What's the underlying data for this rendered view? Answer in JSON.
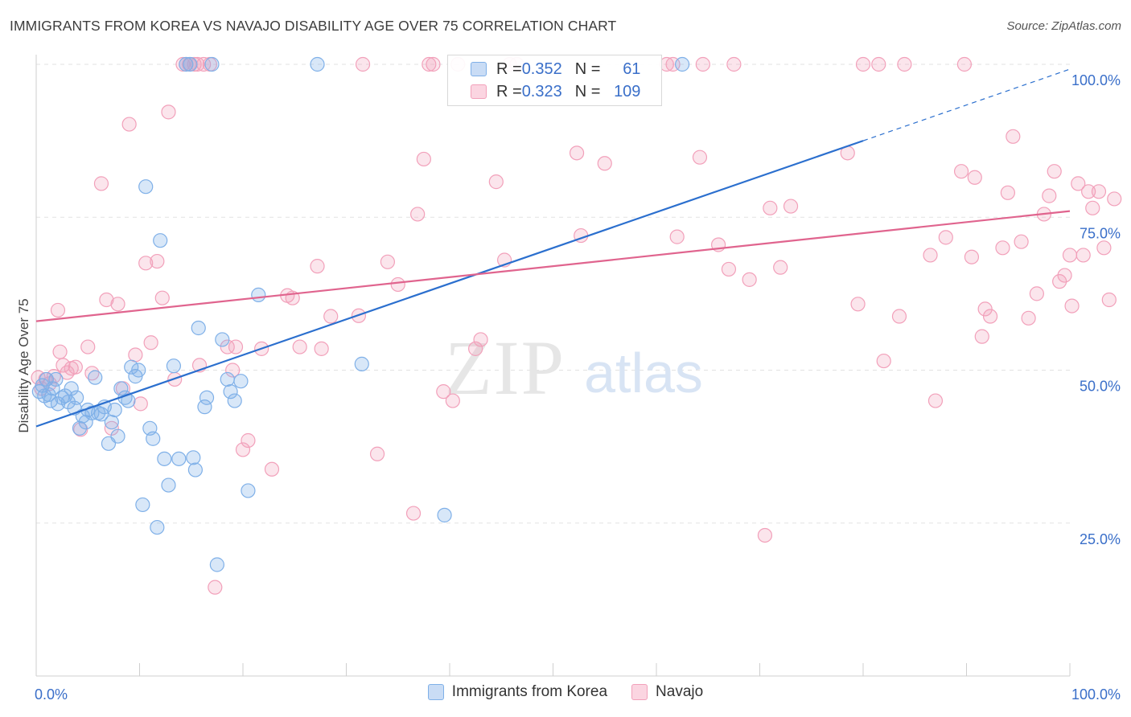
{
  "title": "IMMIGRANTS FROM KOREA VS NAVAJO DISABILITY AGE OVER 75 CORRELATION CHART",
  "source": "Source: ZipAtlas.com",
  "watermark": {
    "zip": "ZIP",
    "atlas": "atlas"
  },
  "legend_top": [
    {
      "r_label": "R = ",
      "r_value": "0.352",
      "n_label": "N = ",
      "n_value": "61"
    },
    {
      "r_label": "R = ",
      "r_value": "0.323",
      "n_label": "N = ",
      "n_value": "109"
    }
  ],
  "bottom_legend": [
    "Immigrants from Korea",
    "Navajo"
  ],
  "chart_data": {
    "type": "scatter",
    "xlabel": "",
    "ylabel": "Disability Age Over 75",
    "xlim": [
      0,
      100
    ],
    "ylim": [
      0,
      100
    ],
    "x_tick_labels": [
      "0.0%",
      "100.0%"
    ],
    "y_tick_labels": [
      {
        "value": 25,
        "label": "25.0%"
      },
      {
        "value": 50,
        "label": "50.0%"
      },
      {
        "value": 75,
        "label": "75.0%"
      },
      {
        "value": 100,
        "label": "100.0%"
      }
    ],
    "grid": true,
    "legend_position": "top-center",
    "colors": {
      "korea": "#7fb0e8",
      "korea_line": "#2b6fce",
      "navajo": "#f2a0ba",
      "navajo_line": "#e0648e",
      "tick_label": "#3a6fc9"
    },
    "series": [
      {
        "name": "Immigrants from Korea",
        "trend": {
          "x0": 0,
          "y0": 40.8,
          "x1": 80,
          "y1": 87.5,
          "dashed_to_x": 100,
          "dashed_to_y": 99.2
        },
        "points": [
          [
            0.3,
            46.5
          ],
          [
            0.6,
            47.5
          ],
          [
            0.8,
            45.8
          ],
          [
            1.0,
            48.5
          ],
          [
            1.2,
            46.0
          ],
          [
            1.4,
            45.0
          ],
          [
            1.6,
            47.0
          ],
          [
            1.9,
            48.5
          ],
          [
            2.1,
            44.5
          ],
          [
            2.5,
            45.5
          ],
          [
            2.8,
            45.8
          ],
          [
            3.1,
            44.8
          ],
          [
            3.4,
            47.0
          ],
          [
            3.7,
            43.8
          ],
          [
            3.9,
            45.5
          ],
          [
            4.2,
            40.5
          ],
          [
            4.5,
            42.5
          ],
          [
            4.8,
            41.5
          ],
          [
            5.0,
            43.5
          ],
          [
            5.4,
            43.0
          ],
          [
            5.7,
            48.8
          ],
          [
            6.0,
            43.0
          ],
          [
            6.3,
            42.8
          ],
          [
            6.6,
            44.0
          ],
          [
            7.0,
            38.0
          ],
          [
            7.3,
            41.5
          ],
          [
            7.6,
            43.5
          ],
          [
            7.9,
            39.2
          ],
          [
            8.2,
            47.0
          ],
          [
            8.6,
            45.5
          ],
          [
            8.9,
            45.0
          ],
          [
            9.2,
            50.5
          ],
          [
            9.6,
            49.0
          ],
          [
            9.9,
            50.0
          ],
          [
            10.3,
            28.0
          ],
          [
            10.6,
            80.0
          ],
          [
            11.0,
            40.5
          ],
          [
            11.3,
            38.8
          ],
          [
            11.7,
            24.3
          ],
          [
            12.0,
            71.2
          ],
          [
            12.4,
            35.5
          ],
          [
            12.8,
            31.2
          ],
          [
            13.3,
            50.7
          ],
          [
            13.8,
            35.5
          ],
          [
            14.5,
            100
          ],
          [
            14.9,
            100
          ],
          [
            15.2,
            35.7
          ],
          [
            15.4,
            33.7
          ],
          [
            15.7,
            56.9
          ],
          [
            16.3,
            44.0
          ],
          [
            16.5,
            45.5
          ],
          [
            17.0,
            100
          ],
          [
            17.5,
            18.2
          ],
          [
            18.0,
            55.0
          ],
          [
            18.5,
            48.5
          ],
          [
            18.8,
            46.5
          ],
          [
            19.2,
            45.0
          ],
          [
            19.8,
            48.2
          ],
          [
            20.5,
            30.3
          ],
          [
            21.5,
            62.3
          ],
          [
            27.2,
            100
          ],
          [
            31.5,
            51.0
          ],
          [
            39.5,
            26.3
          ],
          [
            62.5,
            100
          ]
        ]
      },
      {
        "name": "Navajo",
        "trend": {
          "x0": 0,
          "y0": 58.0,
          "x1": 100,
          "y1": 76.0
        },
        "points": [
          [
            0.2,
            48.8
          ],
          [
            0.5,
            47.0
          ],
          [
            0.9,
            48.5
          ],
          [
            1.3,
            47.8
          ],
          [
            1.7,
            49.0
          ],
          [
            2.1,
            59.8
          ],
          [
            2.3,
            53.0
          ],
          [
            2.6,
            50.8
          ],
          [
            3.0,
            49.6
          ],
          [
            3.4,
            50.3
          ],
          [
            3.8,
            50.5
          ],
          [
            4.3,
            40.3
          ],
          [
            5.0,
            53.8
          ],
          [
            5.4,
            49.5
          ],
          [
            6.3,
            80.5
          ],
          [
            6.8,
            61.5
          ],
          [
            7.3,
            40.5
          ],
          [
            7.9,
            60.8
          ],
          [
            8.4,
            47.0
          ],
          [
            9.0,
            90.2
          ],
          [
            9.6,
            52.5
          ],
          [
            10.1,
            44.5
          ],
          [
            10.6,
            67.5
          ],
          [
            11.1,
            54.5
          ],
          [
            11.7,
            67.8
          ],
          [
            12.2,
            61.8
          ],
          [
            12.8,
            92.2
          ],
          [
            13.4,
            48.5
          ],
          [
            14.2,
            100
          ],
          [
            14.5,
            100
          ],
          [
            14.8,
            100
          ],
          [
            15.3,
            100
          ],
          [
            15.6,
            100
          ],
          [
            15.8,
            50.8
          ],
          [
            16.2,
            100
          ],
          [
            16.8,
            100
          ],
          [
            17.3,
            14.5
          ],
          [
            18.5,
            53.8
          ],
          [
            19.0,
            50.0
          ],
          [
            19.3,
            53.8
          ],
          [
            20.0,
            37.0
          ],
          [
            20.5,
            38.5
          ],
          [
            21.8,
            53.5
          ],
          [
            22.8,
            33.8
          ],
          [
            24.3,
            62.2
          ],
          [
            24.8,
            61.8
          ],
          [
            25.5,
            53.8
          ],
          [
            27.2,
            67.0
          ],
          [
            27.6,
            53.5
          ],
          [
            28.5,
            58.8
          ],
          [
            31.2,
            58.9
          ],
          [
            31.6,
            100
          ],
          [
            33.0,
            36.3
          ],
          [
            34.0,
            67.7
          ],
          [
            35.0,
            64.0
          ],
          [
            36.5,
            26.6
          ],
          [
            36.9,
            75.5
          ],
          [
            37.5,
            84.5
          ],
          [
            38.0,
            100
          ],
          [
            38.4,
            100
          ],
          [
            39.4,
            46.5
          ],
          [
            40.3,
            45.0
          ],
          [
            40.8,
            100
          ],
          [
            42.5,
            53.5
          ],
          [
            43.0,
            55.0
          ],
          [
            44.5,
            80.8
          ],
          [
            45.3,
            68.0
          ],
          [
            45.8,
            100
          ],
          [
            46.5,
            100
          ],
          [
            52.3,
            85.5
          ],
          [
            52.7,
            72.0
          ],
          [
            55.0,
            83.8
          ],
          [
            61.0,
            100
          ],
          [
            61.6,
            100
          ],
          [
            62.0,
            71.8
          ],
          [
            64.2,
            84.8
          ],
          [
            64.5,
            100
          ],
          [
            66.0,
            70.5
          ],
          [
            67.0,
            66.5
          ],
          [
            67.5,
            100
          ],
          [
            69.0,
            64.8
          ],
          [
            70.5,
            23.0
          ],
          [
            71.0,
            76.5
          ],
          [
            72.0,
            66.8
          ],
          [
            73.0,
            76.8
          ],
          [
            78.5,
            85.5
          ],
          [
            79.5,
            60.8
          ],
          [
            80.0,
            100
          ],
          [
            81.5,
            100
          ],
          [
            82.0,
            51.5
          ],
          [
            83.5,
            58.8
          ],
          [
            84.0,
            100
          ],
          [
            86.5,
            68.8
          ],
          [
            87.0,
            45.0
          ],
          [
            88.0,
            71.7
          ],
          [
            89.5,
            82.5
          ],
          [
            89.8,
            100
          ],
          [
            90.5,
            68.5
          ],
          [
            90.8,
            81.5
          ],
          [
            91.5,
            55.5
          ],
          [
            91.8,
            60.0
          ],
          [
            92.3,
            58.8
          ],
          [
            93.5,
            70.0
          ],
          [
            94.0,
            79.0
          ],
          [
            94.5,
            88.2
          ],
          [
            95.3,
            71.0
          ],
          [
            96.0,
            58.5
          ],
          [
            96.8,
            62.5
          ],
          [
            97.5,
            75.5
          ],
          [
            98.0,
            78.5
          ],
          [
            98.5,
            82.5
          ],
          [
            99.0,
            64.5
          ],
          [
            99.5,
            65.5
          ],
          [
            100.0,
            68.8
          ],
          [
            100.2,
            60.5
          ],
          [
            100.8,
            80.5
          ],
          [
            101.3,
            68.8
          ],
          [
            101.8,
            79.2
          ],
          [
            102.2,
            76.5
          ],
          [
            102.8,
            79.2
          ],
          [
            103.3,
            70.0
          ],
          [
            103.8,
            61.5
          ],
          [
            104.3,
            78.0
          ]
        ]
      }
    ]
  }
}
